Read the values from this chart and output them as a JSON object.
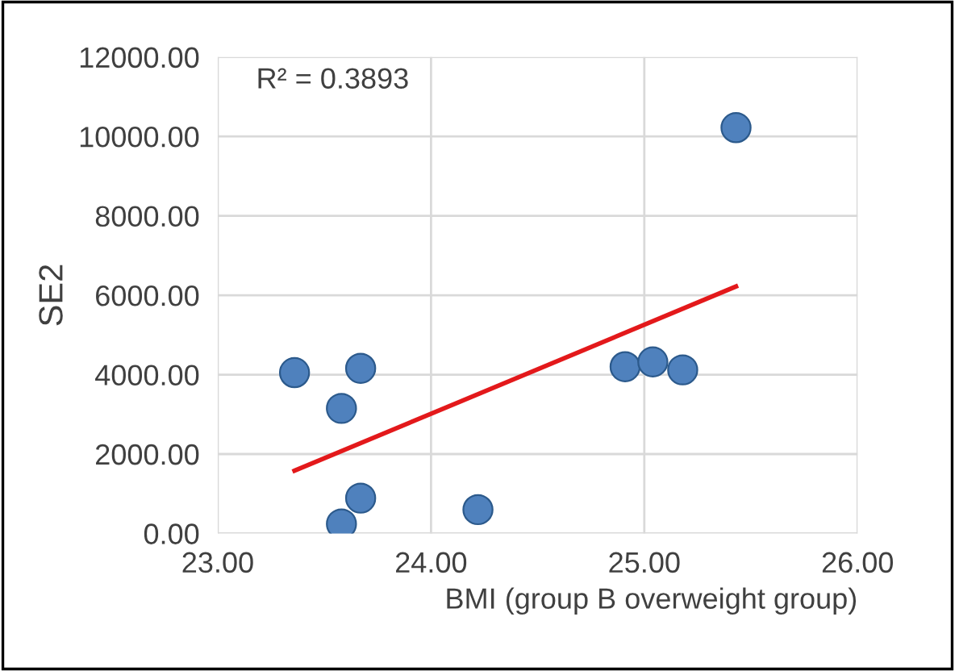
{
  "chart_data": {
    "type": "scatter",
    "xlabel": "BMI (group B overweight group)",
    "ylabel": "SE2",
    "xlim": [
      23,
      26
    ],
    "xticks": [
      {
        "value": 23,
        "label": "23.00"
      },
      {
        "value": 24,
        "label": "24.00"
      },
      {
        "value": 25,
        "label": "25.00"
      },
      {
        "value": 26,
        "label": "26.00"
      }
    ],
    "ylim": [
      0,
      12000
    ],
    "yticks": [
      {
        "value": 0,
        "label": "0.00"
      },
      {
        "value": 2000,
        "label": "2000.00"
      },
      {
        "value": 4000,
        "label": "4000.00"
      },
      {
        "value": 6000,
        "label": "6000.00"
      },
      {
        "value": 8000,
        "label": "8000.00"
      },
      {
        "value": 10000,
        "label": "10000.00"
      },
      {
        "value": 12000,
        "label": "12000.00"
      }
    ],
    "grid": true,
    "annotations": [
      "R² = 0.3893"
    ],
    "series": [
      {
        "marker": "circle",
        "color": "#4f81bd",
        "x": [
          23.36,
          23.58,
          23.67,
          23.67,
          23.58,
          24.22,
          24.91,
          25.04,
          25.18,
          25.43
        ],
        "values": [
          4050,
          3150,
          4160,
          890,
          240,
          600,
          4200,
          4320,
          4120,
          10220
        ]
      },
      {
        "type": "line",
        "marker": "none",
        "color": "#e3191b",
        "x": [
          23.36,
          25.43
        ],
        "values": [
          1580,
          6220
        ]
      }
    ]
  }
}
